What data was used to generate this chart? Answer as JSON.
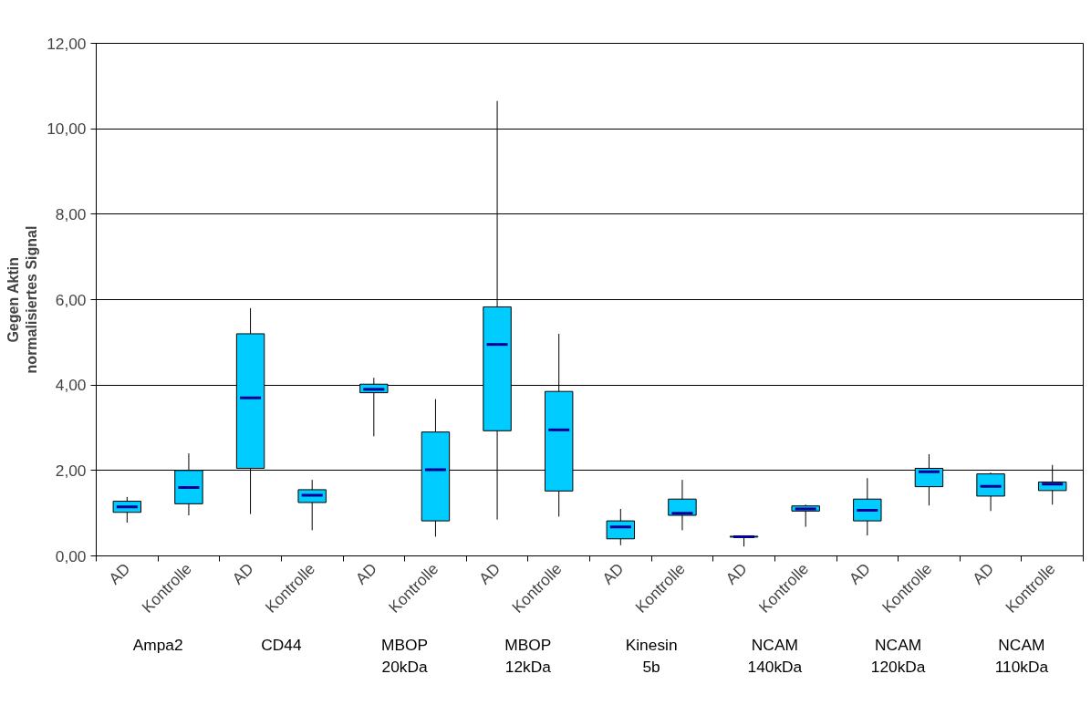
{
  "chart_data": {
    "type": "box",
    "ylabel": "Gegen Aktin\nnormalisiertes Signal",
    "categories": [
      "AD",
      "Kontrolle",
      "AD",
      "Kontrolle",
      "AD",
      "Kontrolle",
      "AD",
      "Kontrolle",
      "AD",
      "Kontrolle",
      "AD",
      "Kontrolle",
      "AD",
      "Kontrolle",
      "AD",
      "Kontrolle"
    ],
    "annotations": [
      "Ampa2",
      "CD44",
      "MBOP\n20kDa",
      "MBOP\n12kDa",
      "Kinesin\n5b",
      "NCAM\n140kDa",
      "NCAM\n120kDa",
      "NCAM\n110kDa"
    ],
    "color": "#00ccff",
    "boxes": [
      {
        "low": 0.78,
        "q1": 1.02,
        "median": 1.15,
        "q3": 1.28,
        "high": 1.38
      },
      {
        "low": 0.95,
        "q1": 1.22,
        "median": 1.6,
        "q3": 2.0,
        "high": 2.4
      },
      {
        "low": 0.98,
        "q1": 2.05,
        "median": 3.7,
        "q3": 5.2,
        "high": 5.8
      },
      {
        "low": 0.6,
        "q1": 1.25,
        "median": 1.42,
        "q3": 1.55,
        "high": 1.78
      },
      {
        "low": 2.8,
        "q1": 3.82,
        "median": 3.9,
        "q3": 4.02,
        "high": 4.17
      },
      {
        "low": 0.45,
        "q1": 0.82,
        "median": 2.02,
        "q3": 2.9,
        "high": 3.67
      },
      {
        "low": 0.85,
        "q1": 2.93,
        "median": 4.95,
        "q3": 5.83,
        "high": 10.65
      },
      {
        "low": 0.92,
        "q1": 1.52,
        "median": 2.95,
        "q3": 3.85,
        "high": 5.2
      },
      {
        "low": 0.25,
        "q1": 0.4,
        "median": 0.68,
        "q3": 0.82,
        "high": 1.1
      },
      {
        "low": 0.6,
        "q1": 0.95,
        "median": 1.0,
        "q3": 1.33,
        "high": 1.78
      },
      {
        "low": 0.22,
        "q1": 0.44,
        "median": 0.45,
        "q3": 0.46,
        "high": 0.47
      },
      {
        "low": 0.68,
        "q1": 1.05,
        "median": 1.1,
        "q3": 1.17,
        "high": 1.2
      },
      {
        "low": 0.48,
        "q1": 0.82,
        "median": 1.07,
        "q3": 1.33,
        "high": 1.82
      },
      {
        "low": 1.18,
        "q1": 1.62,
        "median": 1.97,
        "q3": 2.05,
        "high": 2.38
      },
      {
        "low": 1.05,
        "q1": 1.4,
        "median": 1.63,
        "q3": 1.92,
        "high": 1.95
      },
      {
        "low": 1.2,
        "q1": 1.53,
        "median": 1.68,
        "q3": 1.73,
        "high": 2.13
      }
    ],
    "ylim": [
      0,
      12
    ],
    "yticks": [
      {
        "value": 0,
        "label": "0,00"
      },
      {
        "value": 2,
        "label": "2,00"
      },
      {
        "value": 4,
        "label": "4,00"
      },
      {
        "value": 6,
        "label": "6,00"
      },
      {
        "value": 8,
        "label": "8,00"
      },
      {
        "value": 10,
        "label": "10,00"
      },
      {
        "value": 12,
        "label": "12,00"
      }
    ],
    "grid": "y"
  }
}
